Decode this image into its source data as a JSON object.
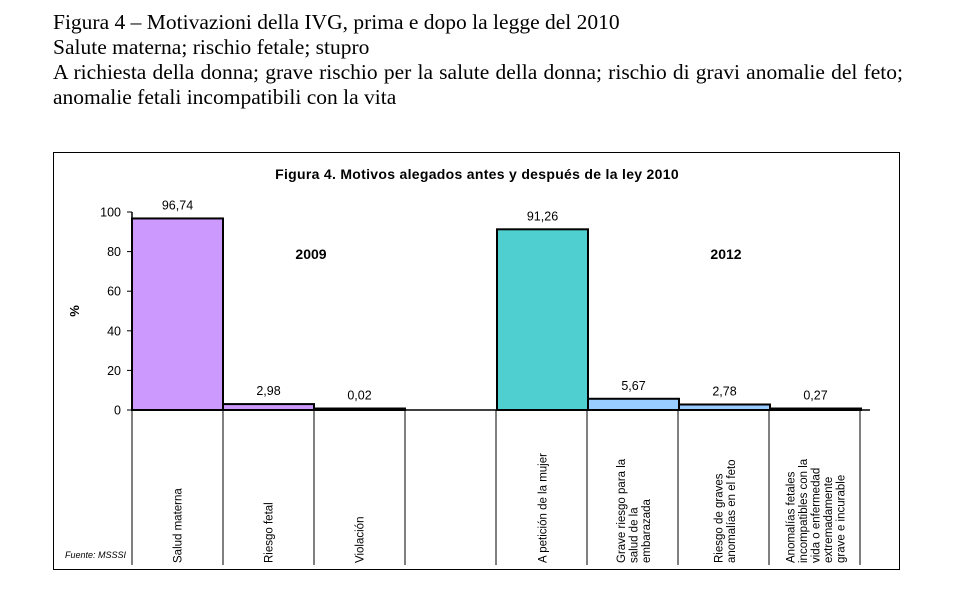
{
  "caption": {
    "line1": "Figura 4 – Motivazioni della IVG, prima e dopo la legge del 2010",
    "line2": "Salute materna; rischio fetale; stupro",
    "line3": "A richiesta della donna; grave rischio per la salute della donna; rischio di gravi anomalie del feto; anomalie fetali incompatibili con la vita"
  },
  "chart_data": {
    "type": "bar",
    "title": "Figura 4.  Motivos alegados antes y después de la ley 2010",
    "ylabel": "%",
    "ylim": [
      0,
      100
    ],
    "yticks": [
      0,
      20,
      40,
      60,
      80,
      100
    ],
    "source": "Fuente: MSSSI",
    "groups": [
      {
        "name": "2009",
        "color": "#cc99ff",
        "categories": [
          [
            "Salud materna"
          ],
          [
            "Riesgo fetal"
          ],
          [
            "Violación"
          ]
        ],
        "values": [
          96.74,
          2.98,
          0.02
        ],
        "labels": [
          "96,74",
          "2,98",
          "0,02"
        ]
      },
      {
        "name": "2012",
        "colors": [
          "#4fcfcf",
          "#99ccff",
          "#99ccff",
          "#99ccff"
        ],
        "categories": [
          [
            "A petición de la mujer"
          ],
          [
            "Grave riesgo para la",
            "salud de la",
            "embarazada"
          ],
          [
            "Riesgo de graves",
            "anomalías en el feto"
          ],
          [
            "Anomalías fetales",
            "incompatibles con la",
            "vida o enfermedad",
            "extremadamente",
            "grave e incurable"
          ]
        ],
        "values": [
          91.26,
          5.67,
          2.78,
          0.27
        ],
        "labels": [
          "91,26",
          "5,67",
          "2,78",
          "0,27"
        ]
      }
    ]
  }
}
